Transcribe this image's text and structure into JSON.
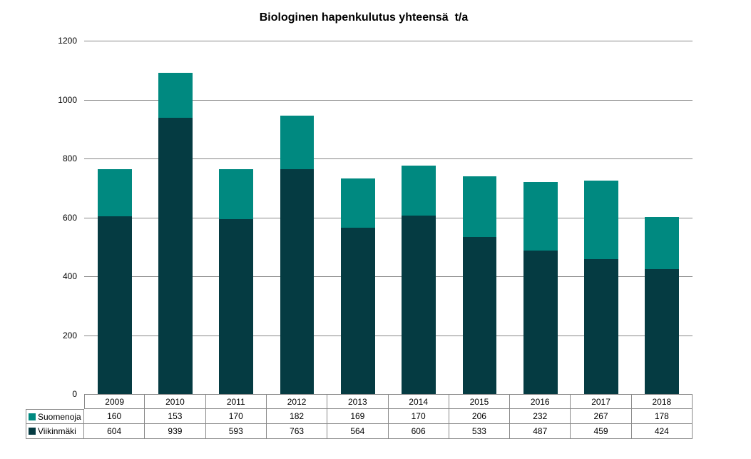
{
  "chart_data": {
    "type": "bar",
    "stacked": true,
    "title": "Biologinen hapenkulutus yhteensä  t/a",
    "categories": [
      "2009",
      "2010",
      "2011",
      "2012",
      "2013",
      "2014",
      "2015",
      "2016",
      "2017",
      "2018"
    ],
    "series": [
      {
        "name": "Suomenoja",
        "color": "#008980",
        "values": [
          160,
          153,
          170,
          182,
          169,
          170,
          206,
          232,
          267,
          178
        ]
      },
      {
        "name": "Viikinmäki",
        "color": "#053B42",
        "values": [
          604,
          939,
          593,
          763,
          564,
          606,
          533,
          487,
          459,
          424
        ]
      }
    ],
    "stack_order_bottom_to_top": [
      "Viikinmäki",
      "Suomenoja"
    ],
    "xlabel": "",
    "ylabel": "",
    "ylim": [
      0,
      1200
    ],
    "yticks": [
      0,
      200,
      400,
      600,
      800,
      1000,
      1200
    ],
    "grid": true,
    "legend_position": "data-table-left",
    "data_table_shown": true
  },
  "colors": {
    "gridline": "#898989",
    "table_border": "#898989",
    "background": "#ffffff",
    "text": "#000000"
  }
}
